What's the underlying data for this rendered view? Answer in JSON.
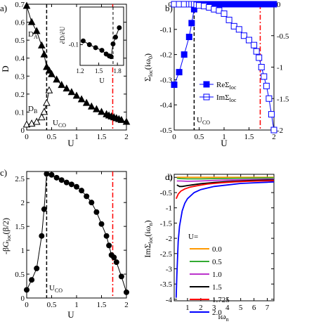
{
  "panels": {
    "a": {
      "letter": "a)",
      "xlabel": "U",
      "ylabel": "D",
      "x_ticks": [
        "0",
        "0.5",
        "1",
        "1.5",
        "2"
      ],
      "y_ticks": [
        "0",
        "0.1",
        "0.2",
        "0.3",
        "0.4",
        "0.5",
        "0.6",
        "0.7"
      ],
      "label_DA": "D",
      "label_DA_sub": "A",
      "label_DB": "D",
      "label_DB_sub": "B",
      "label_UCO": "U",
      "label_UCO_sub": "CO",
      "inset": {
        "xlabel": "U",
        "ylabel": "∂D/∂U",
        "x_ticks": [
          "1.2",
          "1.5",
          "1.8"
        ],
        "y_ticks": [
          "-0.1"
        ]
      }
    },
    "b": {
      "letter": "b)",
      "xlabel": "U",
      "ylabel_main": "Σ",
      "ylabel_sub": "loc",
      "ylabel_tail": "(iω",
      "ylabel_tail_sub": "0",
      "ylabel_close": ")",
      "x_ticks": [
        "0",
        "0.5",
        "1",
        "1.5",
        "2"
      ],
      "y_ticks_left": [
        "0",
        "-0.1",
        "-0.2",
        "-0.3",
        "-0.4",
        "-0.5"
      ],
      "y_ticks_right": [
        "0",
        "-0.5",
        "-1",
        "-1.5",
        "-2"
      ],
      "legend": [
        {
          "main": "ReΣ",
          "sub": "loc"
        },
        {
          "main": "ImΣ",
          "sub": "loc"
        }
      ],
      "label_UCO": "U",
      "label_UCO_sub": "CO"
    },
    "c": {
      "letter": "c)",
      "xlabel": "U",
      "ylabel_main": "-βG",
      "ylabel_sub": "loc",
      "ylabel_tail": "(β/2)",
      "x_ticks": [
        "0",
        "0.5",
        "1",
        "1.5",
        "2"
      ],
      "y_ticks": [
        "0",
        "0.5",
        "1",
        "1.5",
        "2",
        "2.5"
      ],
      "label_UCO": "U",
      "label_UCO_sub": "CO"
    },
    "d": {
      "letter": "d)",
      "xlabel_main": "iω",
      "xlabel_sub": "n",
      "ylabel_main": "ImΣ",
      "ylabel_sub": "loc",
      "ylabel_tail": "(iω",
      "ylabel_tail_sub": "n",
      "ylabel_close": ")",
      "x_ticks": [
        "1",
        "2",
        "3",
        "4",
        "5",
        "6",
        "7"
      ],
      "y_ticks": [
        "0",
        "-0.5",
        "-1",
        "-1.5",
        "-2",
        "-2.5",
        "-3",
        "-3.5",
        "-4"
      ],
      "legend_title": "U=",
      "legend_labels": [
        "0.0",
        "0.5",
        "1.0",
        "1.5",
        "1.725",
        "2.0"
      ]
    }
  },
  "colors": {
    "axis": "#000000",
    "blue": "#0000ff",
    "red_dashdot": "#ff0000",
    "curves": [
      "#ff9900",
      "#33aa33",
      "#bb33cc",
      "#000000",
      "#ff0000",
      "#0000ff"
    ]
  },
  "chart_data": [
    {
      "type": "line",
      "panel": "a",
      "xlim": [
        0,
        2
      ],
      "ylim": [
        0,
        0.7
      ],
      "vlines": [
        {
          "x": 0.4,
          "style": "dashed",
          "color": "#000000"
        },
        {
          "x": 1.725,
          "style": "dashdot",
          "color": "#ff0000"
        }
      ],
      "series": [
        {
          "marker": "filled-triangle",
          "x": [
            0,
            0.1,
            0.2,
            0.3,
            0.35,
            0.4,
            0.45,
            0.5,
            0.6,
            0.7,
            0.8,
            0.9,
            1.0,
            1.1,
            1.2,
            1.3,
            1.4,
            1.5,
            1.6,
            1.65,
            1.7,
            1.75,
            1.8,
            1.85,
            1.9,
            2.0
          ],
          "y": [
            0.69,
            0.6,
            0.55,
            0.47,
            0.42,
            0.35,
            0.33,
            0.31,
            0.28,
            0.25,
            0.23,
            0.21,
            0.19,
            0.17,
            0.15,
            0.13,
            0.115,
            0.1,
            0.087,
            0.08,
            0.075,
            0.07,
            0.065,
            0.06,
            0.055,
            0.045
          ]
        },
        {
          "marker": "open-triangle",
          "x": [
            0,
            0.1,
            0.2,
            0.3,
            0.35,
            0.4,
            0.45
          ],
          "y": [
            0.03,
            0.035,
            0.045,
            0.07,
            0.1,
            0.15,
            0.22
          ]
        }
      ],
      "inset": {
        "xlim": [
          1.2,
          1.9
        ],
        "ylim": [
          -0.155,
          0.0
        ],
        "x": [
          1.25,
          1.35,
          1.45,
          1.55,
          1.62,
          1.67,
          1.7,
          1.73,
          1.77,
          1.83
        ],
        "y": [
          -0.09,
          -0.1,
          -0.108,
          -0.115,
          -0.125,
          -0.13,
          -0.132,
          -0.098,
          -0.08,
          -0.055
        ],
        "vline": 1.73
      }
    },
    {
      "type": "line",
      "panel": "b",
      "xlim": [
        0,
        2
      ],
      "ylim_left": [
        -0.5,
        0
      ],
      "ylim_right": [
        -2,
        0
      ],
      "vlines": [
        {
          "x": 0.4,
          "style": "dashed",
          "color": "#000000"
        },
        {
          "x": 1.725,
          "style": "dashdot",
          "color": "#ff0000"
        }
      ],
      "series": [
        {
          "name": "ReΣloc",
          "axis": "left",
          "marker": "filled-square",
          "x": [
            0.0,
            0.1,
            0.2,
            0.3,
            0.35,
            0.4,
            0.45,
            0.5,
            0.6,
            0.7,
            0.8,
            0.9,
            1.0,
            1.1,
            1.2,
            1.3,
            1.4,
            1.5,
            1.6,
            1.7,
            1.75,
            1.8,
            1.85,
            1.9,
            1.95,
            2.0
          ],
          "y": [
            -0.32,
            -0.27,
            -0.2,
            -0.13,
            -0.075,
            -0.02,
            0,
            0,
            0,
            0,
            0,
            0,
            0,
            0,
            0,
            0,
            0,
            0,
            0,
            0,
            0,
            0,
            0,
            0,
            0,
            0
          ]
        },
        {
          "name": "ImΣloc",
          "axis": "right",
          "marker": "open-square",
          "x": [
            0.0,
            0.1,
            0.2,
            0.3,
            0.35,
            0.4,
            0.45,
            0.5,
            0.6,
            0.7,
            0.8,
            0.9,
            1.0,
            1.1,
            1.2,
            1.3,
            1.4,
            1.5,
            1.6,
            1.65,
            1.7,
            1.75,
            1.8,
            1.85,
            1.9,
            1.95,
            2.0
          ],
          "y": [
            0,
            0,
            0,
            0,
            0,
            0,
            -0.01,
            -0.02,
            -0.03,
            -0.05,
            -0.08,
            -0.1,
            -0.15,
            -0.25,
            -0.35,
            -0.4,
            -0.5,
            -0.57,
            -0.65,
            -0.75,
            -0.85,
            -1.0,
            -1.15,
            -1.3,
            -1.5,
            -1.75,
            -2.0
          ]
        }
      ]
    },
    {
      "type": "line",
      "panel": "c",
      "xlim": [
        0,
        2
      ],
      "ylim": [
        0,
        2.65
      ],
      "vlines": [
        {
          "x": 0.4,
          "style": "dashed",
          "color": "#000000"
        },
        {
          "x": 1.725,
          "style": "dashdot",
          "color": "#ff0000"
        }
      ],
      "series": [
        {
          "marker": "filled-circle",
          "x": [
            0.0,
            0.1,
            0.2,
            0.3,
            0.35,
            0.4,
            0.5,
            0.6,
            0.7,
            0.8,
            0.9,
            1.0,
            1.1,
            1.2,
            1.3,
            1.4,
            1.5,
            1.6,
            1.65,
            1.7,
            1.75,
            1.8,
            1.9,
            2.0
          ],
          "y": [
            0.17,
            0.38,
            0.62,
            1.3,
            1.86,
            2.6,
            2.58,
            2.52,
            2.47,
            2.42,
            2.38,
            2.33,
            2.25,
            2.13,
            2.0,
            1.8,
            1.55,
            1.3,
            1.1,
            0.9,
            0.85,
            0.75,
            0.45,
            0.12
          ]
        }
      ]
    },
    {
      "type": "line",
      "panel": "d",
      "xlim": [
        0,
        7.5
      ],
      "ylim": [
        -4.05,
        0.1
      ],
      "series": [
        {
          "name": "0.0",
          "x": [
            0.2,
            0.5,
            1,
            2,
            3,
            4,
            5,
            6,
            7,
            7.5
          ],
          "y": [
            0,
            0,
            0,
            0,
            0,
            0,
            0,
            0,
            0,
            0
          ]
        },
        {
          "name": "0.5",
          "x": [
            0.2,
            0.5,
            1,
            2,
            3,
            4,
            5,
            6,
            7,
            7.5
          ],
          "y": [
            -0.03,
            -0.04,
            -0.05,
            -0.05,
            -0.04,
            -0.035,
            -0.03,
            -0.025,
            -0.02,
            -0.02
          ]
        },
        {
          "name": "1.0",
          "x": [
            0.2,
            0.5,
            1,
            2,
            3,
            4,
            5,
            6,
            7,
            7.5
          ],
          "y": [
            -0.12,
            -0.12,
            -0.13,
            -0.12,
            -0.1,
            -0.09,
            -0.08,
            -0.07,
            -0.06,
            -0.06
          ]
        },
        {
          "name": "1.5",
          "x": [
            0.2,
            0.4,
            0.6,
            1,
            1.5,
            2,
            3,
            4,
            5,
            6,
            7,
            7.5
          ],
          "y": [
            -0.25,
            -0.3,
            -0.3,
            -0.27,
            -0.24,
            -0.21,
            -0.17,
            -0.14,
            -0.12,
            -0.1,
            -0.09,
            -0.09
          ]
        },
        {
          "name": "1.725",
          "x": [
            0.15,
            0.3,
            0.5,
            0.8,
            1.2,
            1.8,
            2.5,
            3.5,
            4.5,
            5.5,
            6.5,
            7.5
          ],
          "y": [
            -0.7,
            -0.55,
            -0.45,
            -0.38,
            -0.32,
            -0.27,
            -0.22,
            -0.18,
            -0.15,
            -0.13,
            -0.12,
            -0.11
          ]
        },
        {
          "name": "2.0",
          "x": [
            0.15,
            0.2,
            0.3,
            0.4,
            0.6,
            0.8,
            1.0,
            1.5,
            2,
            3,
            4,
            5,
            6,
            7,
            7.5
          ],
          "y": [
            -3.95,
            -3.2,
            -2.1,
            -1.6,
            -1.1,
            -0.85,
            -0.7,
            -0.5,
            -0.4,
            -0.3,
            -0.25,
            -0.2,
            -0.18,
            -0.16,
            -0.15
          ]
        }
      ]
    }
  ]
}
